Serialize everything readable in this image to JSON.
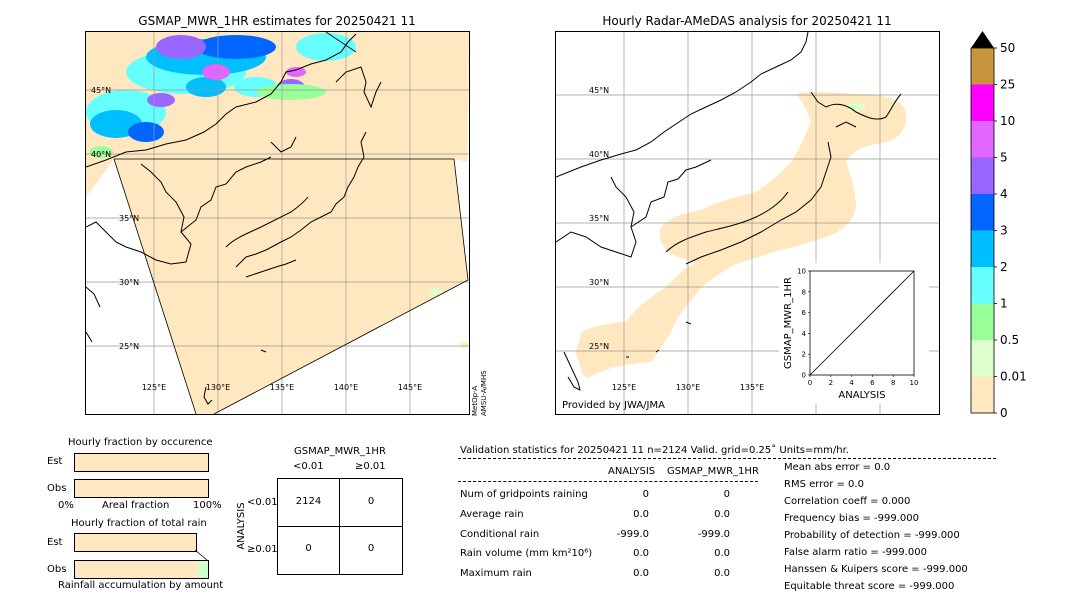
{
  "left_map": {
    "title": "GSMAP_MWR_1HR estimates for 20250421 11",
    "lat_labels": [
      "45°N",
      "40°N",
      "35°N",
      "30°N",
      "25°N"
    ],
    "lon_labels": [
      "125°E",
      "130°E",
      "135°E",
      "140°E",
      "145°E"
    ],
    "sensor_label": "MetOp-A\nAMSU-A/MHS"
  },
  "right_map": {
    "title": "Hourly Radar-AMeDAS analysis for 20250421 11",
    "lat_labels": [
      "45°N",
      "40°N",
      "35°N",
      "30°N",
      "25°N"
    ],
    "lon_labels": [
      "125°E",
      "130°E",
      "135°E"
    ],
    "credit": "Provided by JWA/JMA"
  },
  "colorbar": {
    "labels": [
      "50",
      "25",
      "10",
      "5",
      "4",
      "3",
      "2",
      "1",
      "0.5",
      "0.01",
      "0"
    ],
    "colors": [
      "#c8963c",
      "#ff00ff",
      "#e066ff",
      "#9966ff",
      "#0066ff",
      "#00bfff",
      "#66ffff",
      "#99ff99",
      "#ddffcc",
      "#ffe8c0"
    ],
    "over_color": "#000000"
  },
  "chart_data": {
    "type": "scatter",
    "xlabel": "ANALYSIS",
    "ylabel": "GSMAP_MWR_1HR",
    "xlim": [
      0,
      10
    ],
    "ylim": [
      0,
      10
    ],
    "xticks": [
      "0",
      "2",
      "4",
      "6",
      "8",
      "10"
    ],
    "yticks": [
      "0",
      "2",
      "4",
      "6",
      "8",
      "10"
    ],
    "diagonal": [
      [
        0,
        0
      ],
      [
        10,
        10
      ]
    ],
    "points": []
  },
  "fractions": {
    "occurrence_title": "Hourly fraction by occurence",
    "total_title": "Hourly fraction of total rain",
    "est_label": "Est",
    "obs_label": "Obs",
    "axis_left": "0%",
    "axis_mid": "Areal fraction",
    "axis_right": "100%",
    "accum_label": "Rainfall accumulation by amount",
    "bar_color": "#ffe8c0",
    "occurrence_est": 1.0,
    "occurrence_obs": 1.0,
    "total_est": 1.0,
    "total_obs": 1.0
  },
  "contingency": {
    "title": "GSMAP_MWR_1HR",
    "col_lt": "<0.01",
    "col_ge": "≥0.01",
    "row_axis": "ANALYSIS",
    "row_lt": "<0.01",
    "row_ge": "≥0.01",
    "cells": [
      [
        "2124",
        "0"
      ],
      [
        "0",
        "0"
      ]
    ]
  },
  "validation": {
    "header": "Validation statistics for 20250421 11  n=2124 Valid. grid=0.25˚ Units=mm/hr.",
    "col_analysis": "ANALYSIS",
    "col_gsmap": "GSMAP_MWR_1HR",
    "rows": [
      {
        "label": "Num of gridpoints raining",
        "a": "0",
        "g": "0"
      },
      {
        "label": "Average rain",
        "a": "0.0",
        "g": "0.0"
      },
      {
        "label": "Conditional rain",
        "a": "-999.0",
        "g": "-999.0"
      },
      {
        "label": "Rain volume (mm km²10⁶)",
        "a": "0.0",
        "g": "0.0"
      },
      {
        "label": "Maximum rain",
        "a": "0.0",
        "g": "0.0"
      }
    ],
    "scores": [
      "Mean abs error =    0.0",
      "RMS error =    0.0",
      "Correlation coeff =  0.000",
      "Frequency bias = -999.000",
      "Probability of detection = -999.000",
      "False alarm ratio = -999.000",
      "Hanssen & Kuipers score = -999.000",
      "Equitable threat score = -999.000"
    ]
  }
}
